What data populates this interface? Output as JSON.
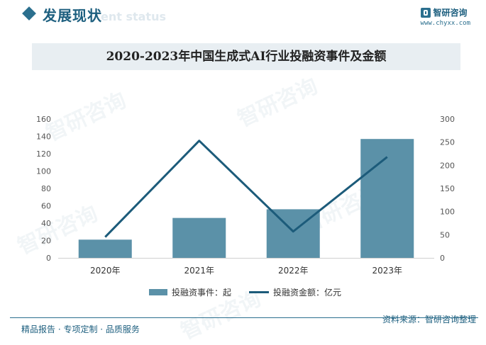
{
  "header": {
    "section_title": "发展现状",
    "section_subtitle_fragment": "ent status",
    "brand_name": "智研咨询",
    "brand_url": "www.chyxx.com"
  },
  "chart_data": {
    "type": "bar",
    "title": "2020-2023年中国生成式AI行业投融资事件及金额",
    "categories": [
      "2020年",
      "2021年",
      "2022年",
      "2023年"
    ],
    "series": [
      {
        "name": "投融资事件：起",
        "type": "bar",
        "axis": "left",
        "values": [
          21,
          46,
          56,
          137
        ],
        "color": "#5b91a8"
      },
      {
        "name": "投融资金额：亿元",
        "type": "line",
        "axis": "right",
        "values": [
          45,
          253,
          57,
          218
        ],
        "color": "#1c5b7a"
      }
    ],
    "y_left": {
      "min": 0,
      "max": 160,
      "ticks": [
        "0",
        "20",
        "40",
        "60",
        "80",
        "100",
        "120",
        "140",
        "160"
      ]
    },
    "y_right": {
      "min": 0,
      "max": 300,
      "ticks": [
        "0",
        "50",
        "100",
        "150",
        "200",
        "250",
        "300"
      ]
    },
    "legend_position": "bottom"
  },
  "footer": {
    "left_text": "精品报告 · 专项定制 · 品质服务",
    "right_text": "资料来源：智研咨询整理"
  },
  "watermark": "智研咨询"
}
